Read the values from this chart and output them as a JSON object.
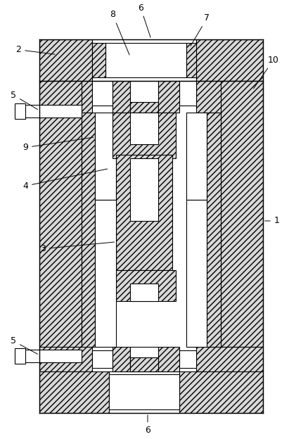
{
  "bg_color": "#ffffff",
  "line_color": "#000000",
  "hatch_pattern": "////",
  "fig_width": 4.11,
  "fig_height": 6.24,
  "dpi": 100
}
